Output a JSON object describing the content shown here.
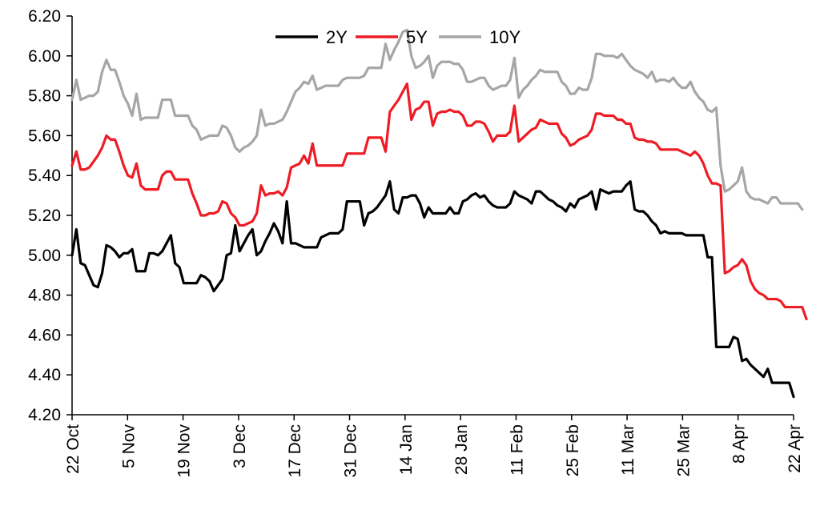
{
  "chart_data": {
    "type": "line",
    "title": "",
    "xlabel": "",
    "ylabel": "",
    "ylim": [
      4.2,
      6.2
    ],
    "y_ticks": [
      "4.20",
      "4.40",
      "4.60",
      "4.80",
      "5.00",
      "5.20",
      "5.40",
      "5.60",
      "5.80",
      "6.00",
      "6.20"
    ],
    "x_ticks": [
      "22 Oct",
      "5 Nov",
      "19 Nov",
      "3 Dec",
      "17 Dec",
      "31 Dec",
      "14 Jan",
      "28 Jan",
      "11 Feb",
      "25 Feb",
      "11 Mar",
      "25 Mar",
      "8 Apr",
      "22 Apr"
    ],
    "grid": false,
    "legend_position": "top-center",
    "series": [
      {
        "name": "2Y",
        "color": "#000000",
        "values": [
          5.0,
          5.13,
          4.96,
          4.95,
          4.9,
          4.85,
          4.84,
          4.91,
          5.05,
          5.04,
          5.02,
          4.99,
          5.01,
          5.01,
          5.03,
          4.92,
          4.92,
          4.92,
          5.01,
          5.01,
          5.0,
          5.02,
          5.06,
          5.1,
          4.96,
          4.94,
          4.86,
          4.86,
          4.86,
          4.86,
          4.9,
          4.89,
          4.87,
          4.82,
          4.85,
          4.88,
          5.0,
          5.01,
          5.15,
          5.02,
          5.06,
          5.1,
          5.13,
          5.0,
          5.02,
          5.07,
          5.11,
          5.16,
          5.12,
          5.06,
          5.27,
          5.06,
          5.06,
          5.05,
          5.04,
          5.04,
          5.04,
          5.04,
          5.09,
          5.1,
          5.11,
          5.11,
          5.11,
          5.13,
          5.27,
          5.27,
          5.27,
          5.27,
          5.15,
          5.21,
          5.22,
          5.24,
          5.27,
          5.3,
          5.37,
          5.23,
          5.21,
          5.29,
          5.29,
          5.3,
          5.3,
          5.26,
          5.19,
          5.24,
          5.21,
          5.21,
          5.21,
          5.21,
          5.24,
          5.21,
          5.21,
          5.27,
          5.28,
          5.3,
          5.31,
          5.29,
          5.3,
          5.27,
          5.25,
          5.24,
          5.24,
          5.24,
          5.26,
          5.32,
          5.3,
          5.29,
          5.28,
          5.26,
          5.32,
          5.32,
          5.3,
          5.28,
          5.27,
          5.25,
          5.24,
          5.22,
          5.26,
          5.24,
          5.28,
          5.29,
          5.3,
          5.32,
          5.23,
          5.33,
          5.32,
          5.31,
          5.32,
          5.32,
          5.32,
          5.35,
          5.37,
          5.23,
          5.22,
          5.22,
          5.2,
          5.17,
          5.15,
          5.11,
          5.12,
          5.11,
          5.11,
          5.11,
          5.11,
          5.1,
          5.1,
          5.1,
          5.1,
          5.1,
          4.99,
          4.99,
          4.54,
          4.54,
          4.54,
          4.54,
          4.59,
          4.58,
          4.47,
          4.48,
          4.45,
          4.43,
          4.41,
          4.39,
          4.43,
          4.36,
          4.36,
          4.36,
          4.36,
          4.36,
          4.29
        ]
      },
      {
        "name": "5Y",
        "color": "#ee1c25",
        "values": [
          5.45,
          5.52,
          5.43,
          5.43,
          5.44,
          5.47,
          5.5,
          5.54,
          5.6,
          5.58,
          5.58,
          5.52,
          5.45,
          5.4,
          5.39,
          5.46,
          5.35,
          5.33,
          5.33,
          5.33,
          5.33,
          5.4,
          5.42,
          5.42,
          5.38,
          5.38,
          5.38,
          5.38,
          5.31,
          5.26,
          5.2,
          5.2,
          5.21,
          5.21,
          5.22,
          5.27,
          5.26,
          5.21,
          5.19,
          5.15,
          5.15,
          5.16,
          5.17,
          5.21,
          5.35,
          5.3,
          5.31,
          5.31,
          5.32,
          5.3,
          5.34,
          5.44,
          5.45,
          5.46,
          5.5,
          5.46,
          5.56,
          5.45,
          5.45,
          5.45,
          5.45,
          5.45,
          5.45,
          5.45,
          5.51,
          5.51,
          5.51,
          5.51,
          5.51,
          5.59,
          5.59,
          5.59,
          5.59,
          5.52,
          5.72,
          5.75,
          5.78,
          5.82,
          5.86,
          5.68,
          5.73,
          5.74,
          5.77,
          5.77,
          5.65,
          5.71,
          5.72,
          5.72,
          5.73,
          5.72,
          5.72,
          5.7,
          5.65,
          5.65,
          5.67,
          5.67,
          5.66,
          5.62,
          5.57,
          5.6,
          5.6,
          5.6,
          5.62,
          5.75,
          5.57,
          5.59,
          5.61,
          5.63,
          5.64,
          5.68,
          5.67,
          5.66,
          5.66,
          5.66,
          5.61,
          5.59,
          5.55,
          5.56,
          5.58,
          5.59,
          5.6,
          5.63,
          5.71,
          5.71,
          5.7,
          5.7,
          5.7,
          5.68,
          5.68,
          5.66,
          5.66,
          5.59,
          5.58,
          5.58,
          5.57,
          5.57,
          5.56,
          5.53,
          5.53,
          5.53,
          5.53,
          5.53,
          5.52,
          5.51,
          5.5,
          5.52,
          5.5,
          5.46,
          5.4,
          5.36,
          5.36,
          5.35,
          4.91,
          4.92,
          4.94,
          4.95,
          4.98,
          4.95,
          4.87,
          4.83,
          4.81,
          4.8,
          4.78,
          4.78,
          4.78,
          4.77,
          4.74,
          4.74,
          4.74,
          4.74,
          4.74,
          4.68
        ]
      },
      {
        "name": "10Y",
        "color": "#a6a6a6",
        "values": [
          5.78,
          5.88,
          5.78,
          5.79,
          5.8,
          5.8,
          5.82,
          5.92,
          5.98,
          5.93,
          5.93,
          5.87,
          5.8,
          5.76,
          5.7,
          5.81,
          5.68,
          5.69,
          5.69,
          5.69,
          5.69,
          5.78,
          5.78,
          5.78,
          5.7,
          5.7,
          5.7,
          5.7,
          5.65,
          5.63,
          5.58,
          5.59,
          5.6,
          5.6,
          5.6,
          5.65,
          5.64,
          5.6,
          5.54,
          5.52,
          5.54,
          5.55,
          5.57,
          5.6,
          5.73,
          5.65,
          5.66,
          5.66,
          5.67,
          5.68,
          5.72,
          5.77,
          5.82,
          5.84,
          5.87,
          5.86,
          5.9,
          5.83,
          5.84,
          5.85,
          5.85,
          5.85,
          5.85,
          5.88,
          5.89,
          5.89,
          5.89,
          5.89,
          5.9,
          5.94,
          5.94,
          5.94,
          5.94,
          6.06,
          5.98,
          6.03,
          6.07,
          6.12,
          6.13,
          6.0,
          5.94,
          5.95,
          5.97,
          6.0,
          5.89,
          5.95,
          5.97,
          5.97,
          5.97,
          5.96,
          5.96,
          5.93,
          5.87,
          5.87,
          5.88,
          5.89,
          5.89,
          5.85,
          5.83,
          5.84,
          5.85,
          5.85,
          5.88,
          5.99,
          5.79,
          5.83,
          5.85,
          5.88,
          5.9,
          5.93,
          5.92,
          5.92,
          5.92,
          5.92,
          5.87,
          5.85,
          5.81,
          5.81,
          5.84,
          5.83,
          5.83,
          5.89,
          6.01,
          6.01,
          6.0,
          6.0,
          6.0,
          5.99,
          6.01,
          5.98,
          5.95,
          5.93,
          5.92,
          5.91,
          5.89,
          5.92,
          5.87,
          5.88,
          5.88,
          5.87,
          5.89,
          5.86,
          5.84,
          5.84,
          5.87,
          5.82,
          5.79,
          5.77,
          5.73,
          5.72,
          5.74,
          5.45,
          5.32,
          5.33,
          5.35,
          5.37,
          5.44,
          5.32,
          5.29,
          5.28,
          5.28,
          5.27,
          5.26,
          5.29,
          5.29,
          5.26,
          5.26,
          5.26,
          5.26,
          5.26,
          5.23
        ]
      }
    ]
  }
}
